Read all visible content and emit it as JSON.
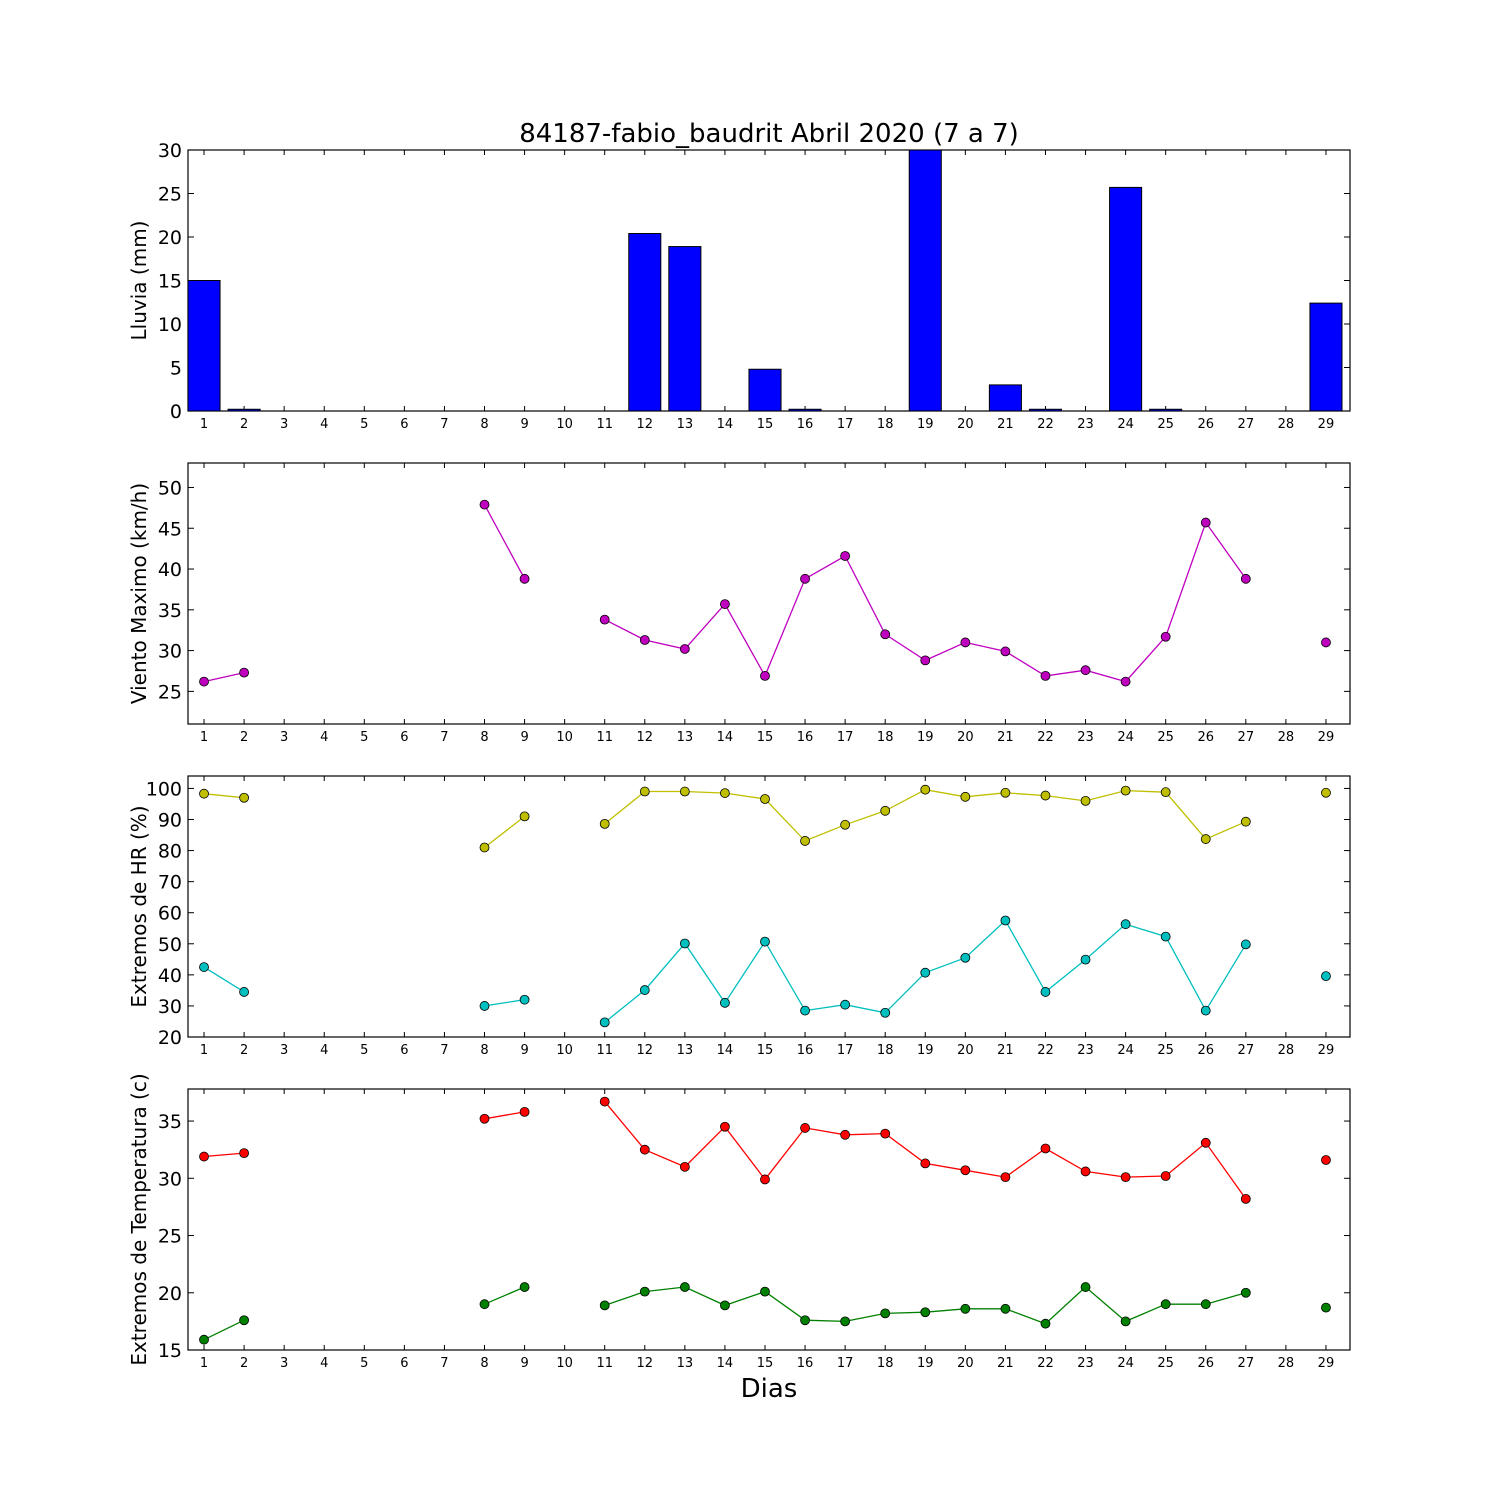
{
  "title": "84187-fabio_baudrit Abril 2020  (7 a 7)",
  "xlabel": "Dias",
  "x_ticks": [
    1,
    2,
    3,
    4,
    5,
    6,
    7,
    8,
    9,
    10,
    11,
    12,
    13,
    14,
    15,
    16,
    17,
    18,
    19,
    20,
    21,
    22,
    23,
    24,
    25,
    26,
    27,
    28,
    29
  ],
  "chart_data": [
    {
      "type": "bar",
      "ylabel": "Lluvia (mm)",
      "ylim": [
        0,
        30
      ],
      "yticks": [
        0,
        5,
        10,
        15,
        20,
        25,
        30
      ],
      "color": "#0000ff",
      "x": [
        1,
        2,
        3,
        4,
        5,
        6,
        7,
        8,
        9,
        10,
        11,
        12,
        13,
        14,
        15,
        16,
        17,
        18,
        19,
        20,
        21,
        22,
        23,
        24,
        25,
        26,
        27,
        28,
        29
      ],
      "values": [
        15.0,
        0.2,
        0,
        0,
        0,
        0,
        0,
        0,
        0,
        0,
        0,
        20.4,
        18.9,
        0,
        4.8,
        0.2,
        0,
        0,
        30.0,
        0,
        3.0,
        0.2,
        0,
        25.7,
        0.2,
        0,
        0,
        0,
        12.4
      ]
    },
    {
      "type": "line",
      "ylabel": "Viento Maximo (km/h)",
      "ylim": [
        21,
        53
      ],
      "yticks": [
        25,
        30,
        35,
        40,
        45,
        50
      ],
      "x": [
        1,
        2,
        3,
        4,
        5,
        6,
        7,
        8,
        9,
        10,
        11,
        12,
        13,
        14,
        15,
        16,
        17,
        18,
        19,
        20,
        21,
        22,
        23,
        24,
        25,
        26,
        27,
        28,
        29
      ],
      "series": [
        {
          "color": "#bf00bf",
          "values": [
            26.2,
            27.3,
            null,
            null,
            null,
            null,
            null,
            47.9,
            38.8,
            null,
            33.8,
            31.3,
            30.2,
            35.7,
            26.9,
            38.8,
            41.6,
            32.0,
            28.8,
            31.0,
            29.9,
            26.9,
            27.6,
            26.2,
            31.7,
            45.7,
            38.8,
            null,
            31.0
          ]
        }
      ]
    },
    {
      "type": "line",
      "ylabel": "Extremos de HR (%)",
      "ylim": [
        20,
        104
      ],
      "yticks": [
        20,
        30,
        40,
        50,
        60,
        70,
        80,
        90,
        100
      ],
      "x": [
        1,
        2,
        3,
        4,
        5,
        6,
        7,
        8,
        9,
        10,
        11,
        12,
        13,
        14,
        15,
        16,
        17,
        18,
        19,
        20,
        21,
        22,
        23,
        24,
        25,
        26,
        27,
        28,
        29
      ],
      "series": [
        {
          "color": "#bfbf00",
          "values": [
            98.3,
            97.0,
            null,
            null,
            null,
            null,
            null,
            81.0,
            91.0,
            null,
            88.6,
            99.0,
            99.0,
            98.5,
            96.6,
            83.1,
            88.3,
            92.8,
            99.6,
            97.3,
            98.6,
            97.7,
            96.0,
            99.3,
            98.8,
            83.7,
            89.3,
            null,
            98.6
          ]
        },
        {
          "color": "#00bfbf",
          "values": [
            42.5,
            34.5,
            null,
            null,
            null,
            null,
            null,
            30.0,
            32.0,
            null,
            24.7,
            35.1,
            50.1,
            31.0,
            50.7,
            28.5,
            30.4,
            27.8,
            40.7,
            45.5,
            57.5,
            34.5,
            44.9,
            56.3,
            52.3,
            28.5,
            49.8,
            null,
            39.6
          ]
        }
      ]
    },
    {
      "type": "line",
      "ylabel": "Extremos de Temperatura (c)",
      "ylim": [
        15,
        37.8
      ],
      "yticks": [
        15,
        20,
        25,
        30,
        35
      ],
      "x": [
        1,
        2,
        3,
        4,
        5,
        6,
        7,
        8,
        9,
        10,
        11,
        12,
        13,
        14,
        15,
        16,
        17,
        18,
        19,
        20,
        21,
        22,
        23,
        24,
        25,
        26,
        27,
        28,
        29
      ],
      "series": [
        {
          "color": "#ff0000",
          "values": [
            31.9,
            32.2,
            null,
            null,
            null,
            null,
            null,
            35.2,
            35.8,
            null,
            36.7,
            32.5,
            31.0,
            34.5,
            29.9,
            34.4,
            33.8,
            33.9,
            31.3,
            30.7,
            30.1,
            32.6,
            30.6,
            30.1,
            30.2,
            33.1,
            28.2,
            null,
            31.6
          ]
        },
        {
          "color": "#008000",
          "values": [
            15.9,
            17.6,
            null,
            null,
            null,
            null,
            null,
            19.0,
            20.5,
            null,
            18.9,
            20.1,
            20.5,
            18.9,
            20.1,
            17.6,
            17.5,
            18.2,
            18.3,
            18.6,
            18.6,
            17.3,
            20.5,
            17.5,
            19.0,
            19.0,
            20.0,
            null,
            18.7
          ]
        }
      ]
    }
  ]
}
